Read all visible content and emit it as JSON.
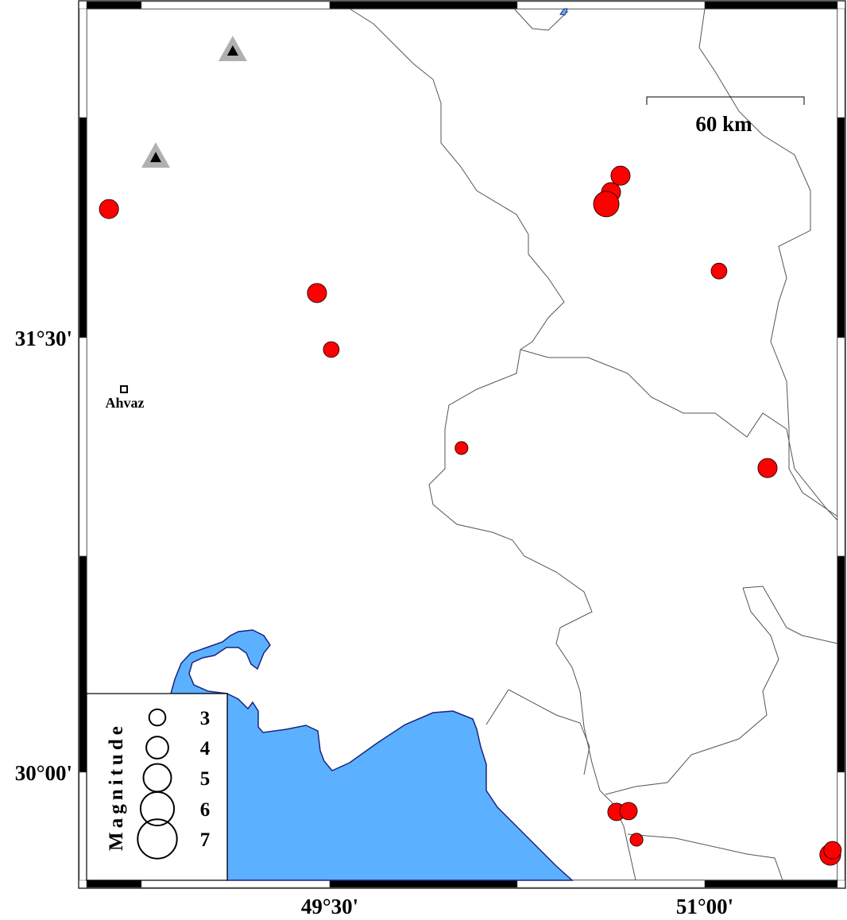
{
  "map": {
    "lon_range": [
      48.5,
      51.5
    ],
    "lat_range": [
      29.6,
      32.65
    ],
    "colors": {
      "sea": "#5BB0FF",
      "coast": "#1A237E",
      "boundary": "#555555",
      "quake": "#FF0000",
      "station_outer": "#B0B0B0",
      "station_inner": "#000000"
    },
    "ticks": {
      "x": [
        {
          "lon": 49.5,
          "label": "49°30'"
        },
        {
          "lon": 51.0,
          "label": "51°00'"
        }
      ],
      "y": [
        {
          "lat": 31.5,
          "label": "31°30'"
        },
        {
          "lat": 30.0,
          "label": "30°00'"
        }
      ]
    },
    "scale_bar": {
      "label": "60 km"
    },
    "city": {
      "name": "Ahvaz",
      "lon": 48.677,
      "lat": 31.322
    },
    "stations": [
      {
        "lon": 49.112,
        "lat": 32.49
      },
      {
        "lon": 48.804,
        "lat": 32.122
      }
    ],
    "earthquakes": [
      {
        "lon": 48.617,
        "lat": 31.944,
        "mag": 3.5
      },
      {
        "lon": 49.449,
        "lat": 31.654,
        "mag": 3.5
      },
      {
        "lon": 49.506,
        "lat": 31.459,
        "mag": 2.9
      },
      {
        "lon": 50.027,
        "lat": 31.119,
        "mag": 2.4
      },
      {
        "lon": 50.663,
        "lat": 32.059,
        "mag": 3.5
      },
      {
        "lon": 50.625,
        "lat": 32.002,
        "mag": 3.5
      },
      {
        "lon": 50.606,
        "lat": 31.961,
        "mag": 4.6
      },
      {
        "lon": 51.057,
        "lat": 31.73,
        "mag": 2.9
      },
      {
        "lon": 51.251,
        "lat": 31.05,
        "mag": 3.5
      },
      {
        "lon": 50.647,
        "lat": 29.863,
        "mag": 3.2
      },
      {
        "lon": 50.695,
        "lat": 29.866,
        "mag": 3.2
      },
      {
        "lon": 50.727,
        "lat": 29.767,
        "mag": 2.4
      },
      {
        "lon": 51.502,
        "lat": 29.715,
        "mag": 3.8
      },
      {
        "lon": 51.511,
        "lat": 29.731,
        "mag": 3.2
      }
    ],
    "legend": {
      "title": "Magnitude",
      "items": [
        {
          "mag": 3,
          "label": "3"
        },
        {
          "mag": 4,
          "label": "4"
        },
        {
          "mag": 5,
          "label": "5"
        },
        {
          "mag": 6,
          "label": "6"
        },
        {
          "mag": 7,
          "label": "7"
        }
      ]
    }
  }
}
